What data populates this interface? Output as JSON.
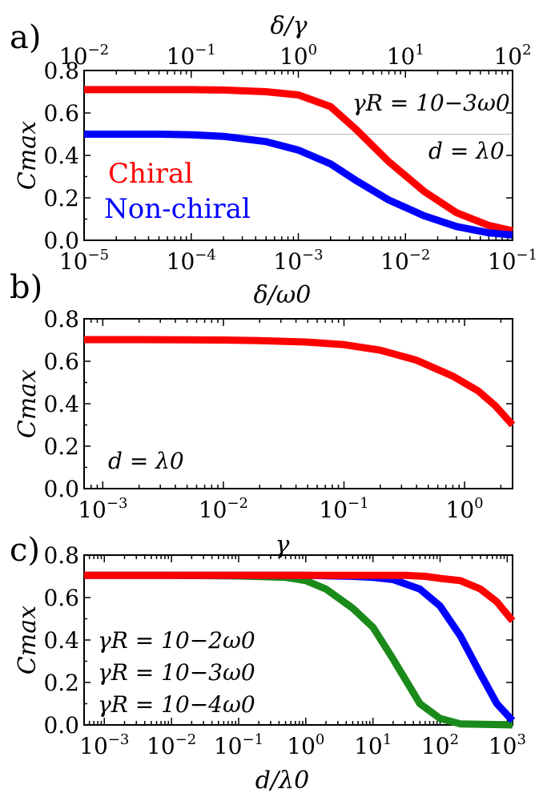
{
  "colors": {
    "red": "#ff0000",
    "blue": "#0000ff",
    "green": "#1a8a1a",
    "ref": "#bbbbbb"
  },
  "chart_data": [
    {
      "panel_label": "a)",
      "type": "line",
      "xscale": "log",
      "xlim": [
        1e-05,
        0.1
      ],
      "ylim": [
        0,
        0.8
      ],
      "xlabel": "δ/ω0",
      "ylabel": "Cmax",
      "top_axis": {
        "label": "δ/γ",
        "xlim": [
          0.01,
          100
        ],
        "ticks": [
          0.01,
          0.1,
          1,
          10,
          100
        ],
        "tick_labels": [
          "10−2",
          "10−1",
          "100",
          "101",
          "102"
        ]
      },
      "xticks": [
        1e-05,
        0.0001,
        0.001,
        0.01,
        0.1
      ],
      "xtick_labels": [
        "10−5",
        "10−4",
        "10−3",
        "10−2",
        "10−1"
      ],
      "yticks": [
        0,
        0.2,
        0.4,
        0.6,
        0.8
      ],
      "ytick_labels": [
        "0.0",
        "0.2",
        "0.4",
        "0.6",
        "0.8"
      ],
      "reference_line": 0.5,
      "annotations": [
        "γR = 10−3ω0",
        "d = λ0"
      ],
      "series": [
        {
          "name": "Chiral",
          "color": "red",
          "x": [
            1e-05,
            2e-05,
            5e-05,
            0.0001,
            0.0002,
            0.0005,
            0.001,
            0.002,
            0.0035,
            0.007,
            0.015,
            0.03,
            0.06,
            0.1
          ],
          "y": [
            0.71,
            0.71,
            0.71,
            0.71,
            0.708,
            0.7,
            0.685,
            0.63,
            0.52,
            0.37,
            0.23,
            0.13,
            0.07,
            0.045
          ]
        },
        {
          "name": "Non-chiral",
          "color": "blue",
          "x": [
            1e-05,
            2e-05,
            5e-05,
            0.0001,
            0.0002,
            0.0005,
            0.001,
            0.002,
            0.0035,
            0.007,
            0.015,
            0.03,
            0.06,
            0.1
          ],
          "y": [
            0.5,
            0.5,
            0.5,
            0.497,
            0.49,
            0.465,
            0.425,
            0.36,
            0.28,
            0.19,
            0.115,
            0.065,
            0.035,
            0.025
          ]
        }
      ]
    },
    {
      "panel_label": "b)",
      "type": "line",
      "xscale": "log",
      "xlim": [
        0.0007,
        2.5
      ],
      "ylim": [
        0,
        0.8
      ],
      "xlabel": "γ",
      "ylabel": "Cmax",
      "xticks": [
        0.001,
        0.01,
        0.1,
        1
      ],
      "xtick_labels": [
        "10−3",
        "10−2",
        "10−1",
        "100"
      ],
      "yticks": [
        0,
        0.2,
        0.4,
        0.6,
        0.8
      ],
      "ytick_labels": [
        "0.0",
        "0.2",
        "0.4",
        "0.6",
        "0.8"
      ],
      "annotations": [
        "d = λ0"
      ],
      "series": [
        {
          "color": "red",
          "x": [
            0.0007,
            0.002,
            0.005,
            0.01,
            0.02,
            0.05,
            0.1,
            0.2,
            0.4,
            0.8,
            1.3,
            1.8,
            2.5
          ],
          "y": [
            0.702,
            0.702,
            0.701,
            0.7,
            0.697,
            0.69,
            0.678,
            0.652,
            0.605,
            0.53,
            0.46,
            0.39,
            0.3
          ]
        }
      ]
    },
    {
      "panel_label": "c)",
      "type": "line",
      "xscale": "log",
      "xlim": [
        0.0005,
        1200
      ],
      "ylim": [
        0,
        0.8
      ],
      "xlabel": "d/λ0",
      "ylabel": "Cmax",
      "xticks": [
        0.001,
        0.01,
        0.1,
        1,
        10,
        100,
        1000
      ],
      "xtick_labels": [
        "10−3",
        "10−2",
        "10−1",
        "100",
        "101",
        "102",
        "103"
      ],
      "yticks": [
        0,
        0.2,
        0.4,
        0.6,
        0.8
      ],
      "ytick_labels": [
        "0.0",
        "0.2",
        "0.4",
        "0.6",
        "0.8"
      ],
      "series": [
        {
          "name": "γR = 10−2ω0",
          "color": "green",
          "x": [
            0.0005,
            0.01,
            0.1,
            0.5,
            1,
            2,
            5,
            10,
            20,
            50,
            100,
            200,
            1200
          ],
          "y": [
            0.705,
            0.705,
            0.702,
            0.695,
            0.68,
            0.64,
            0.55,
            0.46,
            0.31,
            0.1,
            0.03,
            0.005,
            0.0
          ]
        },
        {
          "name": "γR = 10−3ω0",
          "color": "blue",
          "x": [
            0.0005,
            0.01,
            0.1,
            1,
            5,
            10,
            20,
            50,
            100,
            200,
            400,
            700,
            1200
          ],
          "y": [
            0.705,
            0.705,
            0.705,
            0.705,
            0.7,
            0.695,
            0.685,
            0.64,
            0.56,
            0.42,
            0.24,
            0.1,
            0.02
          ]
        },
        {
          "name": "γR = 10−4ω0",
          "color": "red",
          "x": [
            0.0005,
            0.01,
            0.1,
            1,
            10,
            30,
            60,
            100,
            200,
            400,
            700,
            1200
          ],
          "y": [
            0.705,
            0.705,
            0.705,
            0.705,
            0.705,
            0.705,
            0.7,
            0.69,
            0.68,
            0.64,
            0.58,
            0.49
          ]
        }
      ]
    }
  ]
}
